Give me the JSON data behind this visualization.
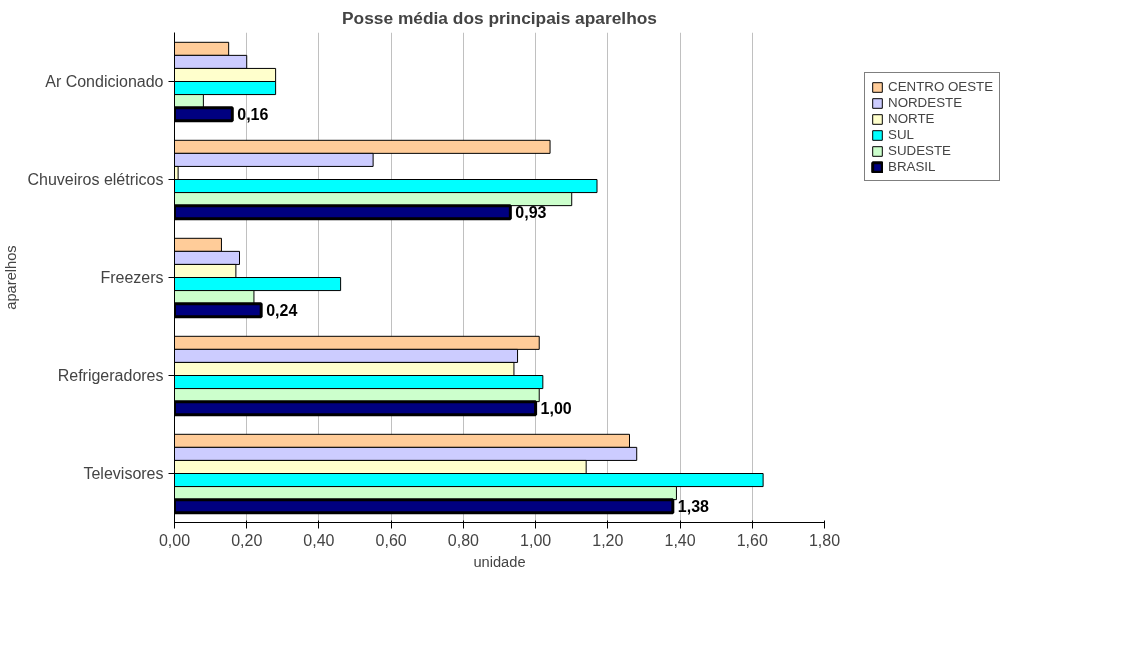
{
  "chart_data": {
    "type": "bar",
    "orientation": "horizontal",
    "title": "Posse média dos principais aparelhos",
    "xlabel": "unidade",
    "ylabel": "aparelhos",
    "categories": [
      "Ar Condicionado",
      "Chuveiros elétricos",
      "Freezers",
      "Refrigeradores",
      "Televisores"
    ],
    "series": [
      {
        "name": "CENTRO OESTE",
        "color": "#ffcc99",
        "values": [
          0.15,
          1.04,
          0.13,
          1.01,
          1.26
        ]
      },
      {
        "name": "NORDESTE",
        "color": "#ccccff",
        "values": [
          0.2,
          0.55,
          0.18,
          0.95,
          1.28
        ]
      },
      {
        "name": "NORTE",
        "color": "#ffffcc",
        "values": [
          0.28,
          0.01,
          0.17,
          0.94,
          1.14
        ]
      },
      {
        "name": "SUL",
        "color": "#00ffff",
        "values": [
          0.28,
          1.17,
          0.46,
          1.02,
          1.63
        ]
      },
      {
        "name": "SUDESTE",
        "color": "#ccffcc",
        "values": [
          0.08,
          1.1,
          0.22,
          1.01,
          1.39
        ]
      },
      {
        "name": "BRASIL",
        "color": "#000080",
        "values": [
          0.16,
          0.93,
          0.24,
          1.0,
          1.38
        ],
        "value_labels": [
          "0,16",
          "0,93",
          "0,24",
          "1,00",
          "1,38"
        ]
      }
    ],
    "xlim": [
      0,
      1.8
    ],
    "xticks": [
      {
        "value": 0,
        "label": "0,00"
      },
      {
        "value": 0.2,
        "label": "0,20"
      },
      {
        "value": 0.4,
        "label": "0,40"
      },
      {
        "value": 0.6,
        "label": "0,60"
      },
      {
        "value": 0.8,
        "label": "0,80"
      },
      {
        "value": 1.0,
        "label": "1,00"
      },
      {
        "value": 1.2,
        "label": "1,20"
      },
      {
        "value": 1.4,
        "label": "1,40"
      },
      {
        "value": 1.6,
        "label": "1,60"
      },
      {
        "value": 1.8,
        "label": "1,80"
      }
    ],
    "grid": "x",
    "legend": "right"
  }
}
